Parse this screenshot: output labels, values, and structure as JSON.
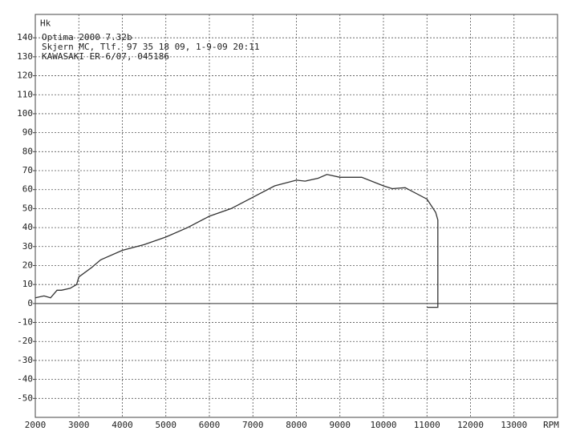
{
  "chart_data": {
    "type": "line",
    "annotations": [
      "Optima 2000 7.32b",
      "Skjern MC, Tlf. 97 35 18 09, 1-9-09  20:11",
      "KAWASAKI ER-6/07, 045186"
    ],
    "x": [
      2000,
      2200,
      2350,
      2500,
      2600,
      2800,
      2950,
      3000,
      3300,
      3500,
      4000,
      4500,
      5000,
      5500,
      6000,
      6500,
      7000,
      7500,
      8000,
      8200,
      8500,
      8700,
      9000,
      9500,
      10000,
      10200,
      10500,
      11000,
      11200,
      11250,
      11250,
      11000
    ],
    "series": [
      {
        "color": "#333333",
        "values": [
          3,
          4,
          3,
          7,
          7,
          8,
          10,
          14,
          19,
          23,
          28,
          31,
          35,
          40,
          46,
          50,
          56,
          62,
          65,
          64.5,
          66,
          68,
          66.5,
          66.5,
          62,
          60.5,
          61,
          55,
          48,
          44,
          -2,
          -2
        ]
      }
    ],
    "xlim": [
      2000,
      14000
    ],
    "xticks": [
      2000,
      3000,
      4000,
      5000,
      6000,
      7000,
      8000,
      9000,
      10000,
      11000,
      12000,
      13000,
      {
        "value": 14000,
        "label": "RPM"
      }
    ],
    "ylim": [
      -60,
      150
    ],
    "yticks": [
      -50,
      -40,
      -30,
      -20,
      -10,
      0,
      10,
      20,
      30,
      40,
      50,
      60,
      70,
      80,
      90,
      100,
      110,
      120,
      130,
      140,
      {
        "value": 150,
        "label": "Hk"
      }
    ],
    "grid": true
  }
}
